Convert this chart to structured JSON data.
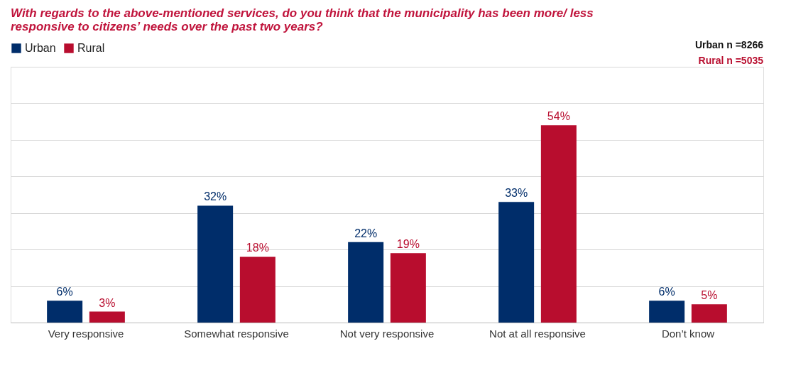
{
  "chart_data": {
    "type": "bar",
    "title": "With regards to the above-mentioned services, do you think that the municipality has been more/ less responsive to citizens’ needs over the past two years?",
    "categories": [
      "Very responsive",
      "Somewhat responsive",
      "Not very responsive",
      "Not at all responsive",
      "Don’t know"
    ],
    "series": [
      {
        "name": "Urban",
        "color": "#002d6a",
        "values": [
          6,
          32,
          22,
          33,
          6
        ],
        "value_labels": [
          "6%",
          "32%",
          "22%",
          "33%",
          "6%"
        ]
      },
      {
        "name": "Rural",
        "color": "#b80d2e",
        "values": [
          3,
          18,
          19,
          54,
          5
        ],
        "value_labels": [
          "3%",
          "18%",
          "19%",
          "54%",
          "5%"
        ]
      }
    ],
    "ylim": [
      0,
      70
    ],
    "yticks": [
      {
        "value": 0,
        "label": null
      },
      {
        "value": 10,
        "label": null
      },
      {
        "value": 20,
        "label": null
      },
      {
        "value": 30,
        "label": null
      },
      {
        "value": 40,
        "label": null
      },
      {
        "value": 50,
        "label": null
      },
      {
        "value": 60,
        "label": null
      },
      {
        "value": 70,
        "label": null
      }
    ],
    "grid": "y",
    "legend": "top",
    "tick_labels": "x",
    "annotations": [
      "Urban n =8266",
      "Rural n =5035"
    ]
  }
}
